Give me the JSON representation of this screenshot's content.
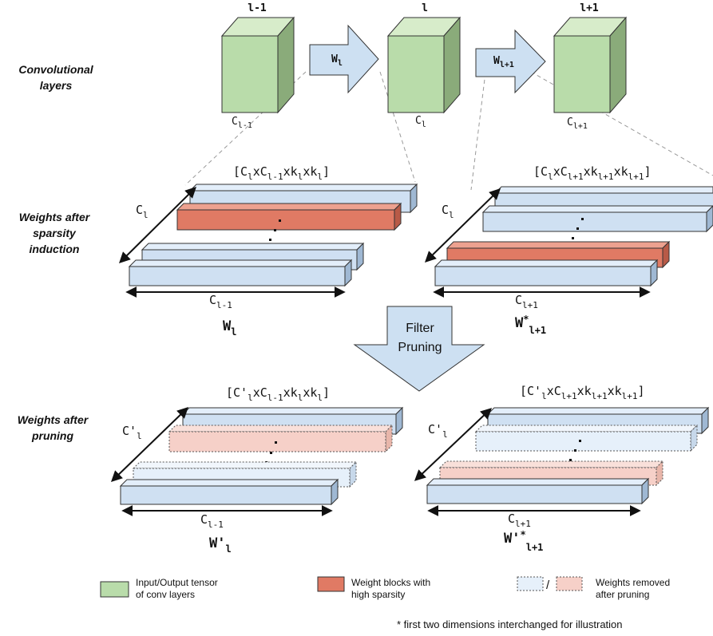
{
  "colors": {
    "tensor_front": "#b9dcaa",
    "tensor_top": "#d7ecca",
    "tensor_side": "#8aab7a",
    "block_blue": "#cfe0f2",
    "block_blue_top": "#e3eefa",
    "block_blue_side": "#9fb8d3",
    "block_red": "#e07a64",
    "block_red_top": "#eda18f",
    "block_red_side": "#b85a47",
    "arrow_fill": "#cde0f2",
    "pruned_blue": "#e6f0fa",
    "pruned_red": "#f6d0c8"
  },
  "row_labels": {
    "conv": [
      "Convolutional",
      "layers"
    ],
    "sparsity": [
      "Weights after",
      "sparsity",
      "induction"
    ],
    "pruning": [
      "Weights after",
      "pruning"
    ]
  },
  "layers": {
    "prev": {
      "top": "l-1",
      "bottom_main": "C",
      "bottom_sub": "l-1"
    },
    "cur": {
      "top": "l",
      "bottom_main": "C",
      "bottom_sub": "l"
    },
    "next": {
      "top": "l+1",
      "bottom_main": "C",
      "bottom_sub": "l+1"
    }
  },
  "arrows": {
    "w1": {
      "main": "W",
      "sub": "l"
    },
    "w2": {
      "main": "W",
      "sub": "l+1"
    },
    "filter_pruning": [
      "Filter",
      "Pruning"
    ]
  },
  "sparsity": {
    "left": {
      "dims": {
        "p1": "[C",
        "s1": "l",
        "p2": "xC",
        "s2": "l-1",
        "p3": "xk",
        "s3": "l",
        "p4": "xk",
        "s4": "l",
        "p5": "]"
      },
      "side_main": "C",
      "side_sub": "l",
      "bottom_main": "C",
      "bottom_sub": "l-1",
      "w_main": "W",
      "w_sup": "",
      "w_sub": "l"
    },
    "right": {
      "dims": {
        "p1": "[C",
        "s1": "l",
        "p2": "xC",
        "s2": "l+1",
        "p3": "xk",
        "s3": "l+1",
        "p4": "xk",
        "s4": "l+1",
        "p5": "]"
      },
      "side_main": "C",
      "side_sub": "l",
      "bottom_main": "C",
      "bottom_sub": "l+1",
      "w_main": "W",
      "w_sup": "*",
      "w_sub": "l+1"
    }
  },
  "pruning": {
    "left": {
      "dims": {
        "p1": "[C'",
        "s1": "l",
        "p2": "xC",
        "s2": "l-1",
        "p3": "xk",
        "s3": "l",
        "p4": "xk",
        "s4": "l",
        "p5": "]"
      },
      "side_main": "C'",
      "side_sub": "l",
      "bottom_main": "C",
      "bottom_sub": "l-1",
      "w_main": "W'",
      "w_sup": "",
      "w_sub": "l"
    },
    "right": {
      "dims": {
        "p1": "[C'",
        "s1": "l",
        "p2": "xC",
        "s2": "l+1",
        "p3": "xk",
        "s3": "l+1",
        "p4": "xk",
        "s4": "l+1",
        "p5": "]"
      },
      "side_main": "C'",
      "side_sub": "l",
      "bottom_main": "C",
      "bottom_sub": "l+1",
      "w_main": "W'",
      "w_sup": "*",
      "w_sub": "l+1"
    }
  },
  "legend": {
    "tensor": [
      "Input/Output tensor",
      "of conv layers"
    ],
    "sparse": [
      "Weight blocks with",
      "high sparsity"
    ],
    "slash": "/",
    "removed": [
      "Weights removed",
      "after pruning"
    ]
  },
  "footnote": "* first two dimensions interchanged for illustration"
}
